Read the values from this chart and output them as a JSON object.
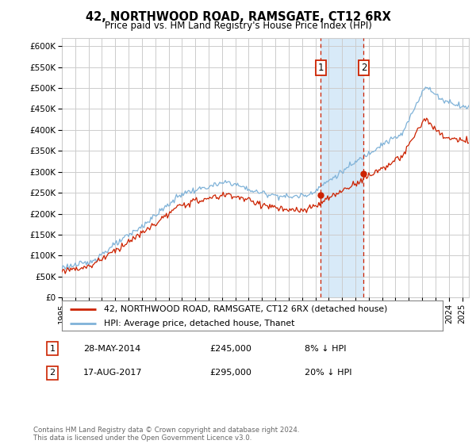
{
  "title": "42, NORTHWOOD ROAD, RAMSGATE, CT12 6RX",
  "subtitle": "Price paid vs. HM Land Registry's House Price Index (HPI)",
  "ylim": [
    0,
    620000
  ],
  "yticks": [
    0,
    50000,
    100000,
    150000,
    200000,
    250000,
    300000,
    350000,
    400000,
    450000,
    500000,
    550000,
    600000
  ],
  "ytick_labels": [
    "£0",
    "£50K",
    "£100K",
    "£150K",
    "£200K",
    "£250K",
    "£300K",
    "£350K",
    "£400K",
    "£450K",
    "£500K",
    "£550K",
    "£600K"
  ],
  "xlim_start": 1995.0,
  "xlim_end": 2025.5,
  "transaction1_x": 2014.41,
  "transaction1_y": 245000,
  "transaction1_label": "1",
  "transaction1_date": "28-MAY-2014",
  "transaction1_price": "£245,000",
  "transaction1_note": "8% ↓ HPI",
  "transaction2_x": 2017.62,
  "transaction2_y": 295000,
  "transaction2_label": "2",
  "transaction2_date": "17-AUG-2017",
  "transaction2_price": "£295,000",
  "transaction2_note": "20% ↓ HPI",
  "red_line_color": "#cc2200",
  "blue_line_color": "#7fb2d8",
  "shade_color": "#d8eaf8",
  "marker_box_color": "#cc2200",
  "background_color": "#ffffff",
  "grid_color": "#cccccc",
  "footnote": "Contains HM Land Registry data © Crown copyright and database right 2024.\nThis data is licensed under the Open Government Licence v3.0.",
  "legend_line1": "42, NORTHWOOD ROAD, RAMSGATE, CT12 6RX (detached house)",
  "legend_line2": "HPI: Average price, detached house, Thanet"
}
